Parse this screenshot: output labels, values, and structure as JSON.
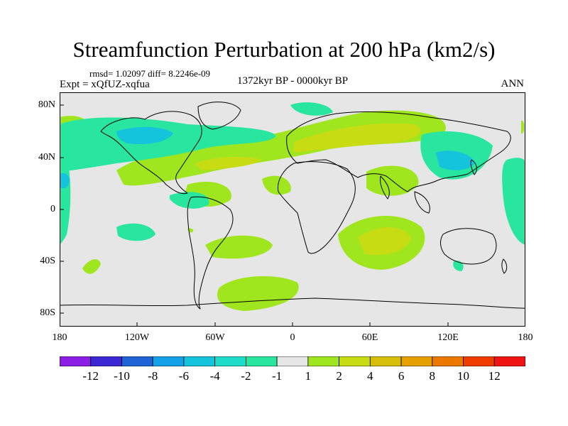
{
  "title": "Streamfunction Perturbation at 200 hPa (km2/s)",
  "stats": "rmsd= 1.02097 diff= 8.2246e-09",
  "experiment": "Expt = xQfUZ-xqfua",
  "period": "1372kyr BP - 0000kyr BP",
  "season": "ANN",
  "axes": {
    "latitude_ticks": [
      "80N",
      "40N",
      "0",
      "40S",
      "80S"
    ],
    "longitude_ticks": [
      "180",
      "120W",
      "60W",
      "0",
      "60E",
      "120E",
      "180"
    ]
  },
  "colorbar": {
    "labels": [
      "-12",
      "-10",
      "-8",
      "-6",
      "-4",
      "-2",
      "-1",
      "1",
      "2",
      "4",
      "6",
      "8",
      "10",
      "12"
    ],
    "colors": [
      "#8c1ee6",
      "#3c28d2",
      "#1e64d7",
      "#14a0e6",
      "#14c3dc",
      "#1edcc8",
      "#28e6a0",
      "#e6e6e6",
      "#a0e61e",
      "#c8dc14",
      "#d7be0a",
      "#e6a000",
      "#eb7800",
      "#f03c00",
      "#f01414"
    ]
  },
  "colors": {
    "neutral": "#e6e6e6",
    "pos1": "#a0e61e",
    "pos2": "#c8dc14",
    "neg1": "#28e6a0",
    "neg2": "#1edcc8",
    "neg3": "#14c3dc"
  }
}
